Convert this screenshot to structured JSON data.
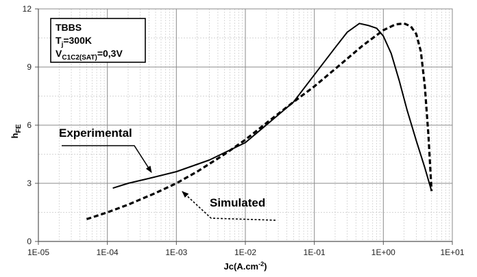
{
  "chart_data": {
    "type": "line",
    "x_scale": "log",
    "xlim": [
      1e-05,
      10
    ],
    "ylim": [
      0,
      12
    ],
    "x_ticks": [
      "1E-05",
      "1E-04",
      "1E-03",
      "1E-02",
      "1E-01",
      "1E+00",
      "1E+01"
    ],
    "y_ticks": [
      "0",
      "3",
      "6",
      "9",
      "12"
    ],
    "y_tick_values": [
      0,
      3,
      6,
      9,
      12
    ],
    "xlabel": {
      "main": "Jc(A.cm",
      "sup": "-2",
      "end": ")"
    },
    "ylabel": {
      "main": "h",
      "sub": "FE"
    },
    "grid": true,
    "info_box": {
      "line1": "TBBS",
      "line2": {
        "main": "T",
        "sub": "j",
        "end": "=300K"
      },
      "line3": {
        "main": "V",
        "sub": "C1C2(SAT)",
        "end": "=0,3V"
      }
    },
    "series": [
      {
        "name": "Experimental",
        "style": "solid",
        "color": "#000000",
        "x": [
          0.00012,
          0.0002,
          0.0004,
          0.001,
          0.003,
          0.01,
          0.02,
          0.05,
          0.1,
          0.2,
          0.3,
          0.45,
          0.6,
          0.8,
          1.0,
          1.3,
          1.7,
          2.2,
          3.0,
          4.0,
          5.0
        ],
        "y": [
          2.75,
          3.0,
          3.25,
          3.6,
          4.2,
          5.1,
          6.0,
          7.2,
          8.6,
          10.0,
          10.8,
          11.25,
          11.15,
          11.0,
          10.6,
          9.7,
          8.3,
          6.8,
          5.2,
          3.8,
          2.6
        ]
      },
      {
        "name": "Simulated",
        "style": "dashed",
        "color": "#000000",
        "x": [
          5e-05,
          0.0001,
          0.0002,
          0.0005,
          0.001,
          0.002,
          0.005,
          0.01,
          0.02,
          0.05,
          0.1,
          0.2,
          0.5,
          1.0,
          1.5,
          2.0,
          2.5,
          3.0,
          3.5,
          4.0,
          4.5,
          5.0
        ],
        "y": [
          1.15,
          1.5,
          1.9,
          2.5,
          3.0,
          3.6,
          4.5,
          5.25,
          6.1,
          7.2,
          8.0,
          8.9,
          10.1,
          10.9,
          11.2,
          11.25,
          11.1,
          10.7,
          9.8,
          8.0,
          5.5,
          2.6
        ]
      }
    ],
    "annotations": [
      {
        "label": "Experimental",
        "text": "Experimental"
      },
      {
        "label": "Simulated",
        "text": "Simulated"
      }
    ]
  }
}
